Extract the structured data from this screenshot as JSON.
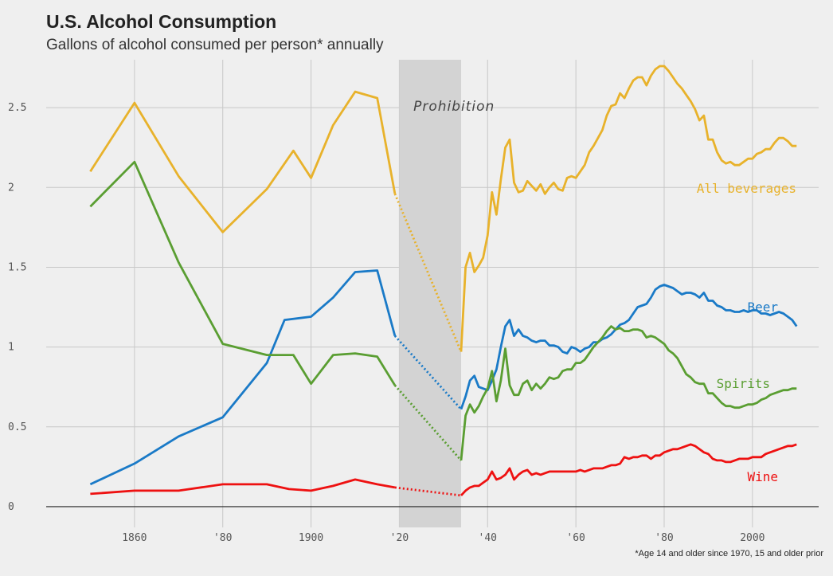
{
  "header": {
    "title": "U.S. Alcohol Consumption",
    "subtitle": "Gallons of alcohol consumed per person* annually",
    "footnote": "*Age 14 and older since 1970, 15 and older prior"
  },
  "chart_data": {
    "type": "line",
    "title": "U.S. Alcohol Consumption",
    "subtitle": "Gallons of alcohol consumed per person* annually",
    "xlim": [
      1840,
      2015
    ],
    "ylim": [
      -0.13,
      2.8
    ],
    "y_ticks": [
      0,
      0.5,
      1,
      1.5,
      2,
      2.5
    ],
    "y_tick_labels": [
      "0",
      "0.5",
      "1",
      "1.5",
      "2",
      "2.5"
    ],
    "x_ticks": [
      1860,
      1880,
      1900,
      1920,
      1940,
      1960,
      1980,
      2000
    ],
    "x_tick_labels": [
      "1860",
      "'80",
      "1900",
      "'20",
      "'40",
      "'60",
      "'80",
      "2000"
    ],
    "grid": true,
    "shaded_region": {
      "label": "Prohibition",
      "x": [
        1920,
        1934
      ],
      "color": "#d3d3d3"
    },
    "series": [
      {
        "name": "All beverages",
        "color": "#e8b22b",
        "x": [
          1850,
          1860,
          1870,
          1880,
          1890,
          1896,
          1900,
          1905,
          1910,
          1915,
          1919
        ],
        "y": [
          2.1,
          2.53,
          2.07,
          1.72,
          1.99,
          2.23,
          2.06,
          2.39,
          2.6,
          2.56,
          1.96
        ],
        "gap_x": [
          1919,
          1934
        ],
        "gap_y": [
          1.96,
          0.97
        ],
        "x2": [
          1934,
          1935,
          1936,
          1937,
          1938,
          1939,
          1940,
          1941,
          1942,
          1943,
          1944,
          1945,
          1946,
          1947,
          1948,
          1949,
          1950,
          1951,
          1952,
          1953,
          1954,
          1955,
          1956,
          1957,
          1958,
          1959,
          1960,
          1961,
          1962,
          1963,
          1964,
          1965,
          1966,
          1967,
          1968,
          1969,
          1970,
          1971,
          1972,
          1973,
          1974,
          1975,
          1976,
          1977,
          1978,
          1979,
          1980,
          1981,
          1982,
          1983,
          1984,
          1985,
          1986,
          1987,
          1988,
          1989,
          1990,
          1991,
          1992,
          1993,
          1994,
          1995,
          1996,
          1997,
          1998,
          1999,
          2000,
          2001,
          2002,
          2003,
          2004,
          2005,
          2006,
          2007,
          2008,
          2009,
          2010
        ],
        "y2": [
          0.97,
          1.5,
          1.59,
          1.47,
          1.51,
          1.56,
          1.7,
          1.97,
          1.83,
          2.05,
          2.25,
          2.3,
          2.03,
          1.97,
          1.98,
          2.04,
          2.01,
          1.98,
          2.02,
          1.96,
          2.0,
          2.03,
          1.99,
          1.98,
          2.06,
          2.07,
          2.06,
          2.1,
          2.14,
          2.22,
          2.26,
          2.31,
          2.36,
          2.45,
          2.51,
          2.52,
          2.59,
          2.56,
          2.62,
          2.67,
          2.69,
          2.69,
          2.64,
          2.7,
          2.74,
          2.76,
          2.76,
          2.73,
          2.69,
          2.65,
          2.62,
          2.58,
          2.54,
          2.49,
          2.42,
          2.45,
          2.3,
          2.3,
          2.22,
          2.17,
          2.15,
          2.16,
          2.14,
          2.14,
          2.16,
          2.18,
          2.18,
          2.21,
          2.22,
          2.24,
          2.24,
          2.28,
          2.31,
          2.31,
          2.29,
          2.26,
          2.26
        ]
      },
      {
        "name": "Beer",
        "color": "#1a7ac7",
        "x": [
          1850,
          1860,
          1870,
          1880,
          1890,
          1894,
          1900,
          1905,
          1910,
          1915,
          1919
        ],
        "y": [
          0.14,
          0.27,
          0.44,
          0.56,
          0.9,
          1.17,
          1.19,
          1.31,
          1.47,
          1.48,
          1.07
        ],
        "gap_x": [
          1919,
          1934
        ],
        "gap_y": [
          1.07,
          0.61
        ],
        "x2": [
          1934,
          1935,
          1936,
          1937,
          1938,
          1939,
          1940,
          1941,
          1942,
          1943,
          1944,
          1945,
          1946,
          1947,
          1948,
          1949,
          1950,
          1951,
          1952,
          1953,
          1954,
          1955,
          1956,
          1957,
          1958,
          1959,
          1960,
          1961,
          1962,
          1963,
          1964,
          1965,
          1966,
          1967,
          1968,
          1969,
          1970,
          1971,
          1972,
          1973,
          1974,
          1975,
          1976,
          1977,
          1978,
          1979,
          1980,
          1981,
          1982,
          1983,
          1984,
          1985,
          1986,
          1987,
          1988,
          1989,
          1990,
          1991,
          1992,
          1993,
          1994,
          1995,
          1996,
          1997,
          1998,
          1999,
          2000,
          2001,
          2002,
          2003,
          2004,
          2005,
          2006,
          2007,
          2008,
          2009,
          2010
        ],
        "y2": [
          0.61,
          0.69,
          0.79,
          0.82,
          0.75,
          0.74,
          0.73,
          0.79,
          0.86,
          1.0,
          1.13,
          1.17,
          1.07,
          1.11,
          1.07,
          1.06,
          1.04,
          1.03,
          1.04,
          1.04,
          1.01,
          1.01,
          1.0,
          0.97,
          0.96,
          1.0,
          0.99,
          0.97,
          0.99,
          1.0,
          1.03,
          1.03,
          1.05,
          1.06,
          1.08,
          1.11,
          1.14,
          1.15,
          1.17,
          1.21,
          1.25,
          1.26,
          1.27,
          1.31,
          1.36,
          1.38,
          1.39,
          1.38,
          1.37,
          1.35,
          1.33,
          1.34,
          1.34,
          1.33,
          1.31,
          1.34,
          1.29,
          1.29,
          1.26,
          1.25,
          1.23,
          1.23,
          1.22,
          1.22,
          1.23,
          1.22,
          1.23,
          1.23,
          1.21,
          1.21,
          1.2,
          1.21,
          1.22,
          1.21,
          1.19,
          1.17,
          1.13
        ]
      },
      {
        "name": "Spirits",
        "color": "#5a9e32",
        "x": [
          1850,
          1860,
          1870,
          1880,
          1890,
          1896,
          1900,
          1905,
          1910,
          1915,
          1919
        ],
        "y": [
          1.88,
          2.16,
          1.53,
          1.02,
          0.95,
          0.95,
          0.77,
          0.95,
          0.96,
          0.94,
          0.76
        ],
        "gap_x": [
          1919,
          1934
        ],
        "gap_y": [
          0.76,
          0.29
        ],
        "x2": [
          1934,
          1935,
          1936,
          1937,
          1938,
          1939,
          1940,
          1941,
          1942,
          1943,
          1944,
          1945,
          1946,
          1947,
          1948,
          1949,
          1950,
          1951,
          1952,
          1953,
          1954,
          1955,
          1956,
          1957,
          1958,
          1959,
          1960,
          1961,
          1962,
          1963,
          1964,
          1965,
          1966,
          1967,
          1968,
          1969,
          1970,
          1971,
          1972,
          1973,
          1974,
          1975,
          1976,
          1977,
          1978,
          1979,
          1980,
          1981,
          1982,
          1983,
          1984,
          1985,
          1986,
          1987,
          1988,
          1989,
          1990,
          1991,
          1992,
          1993,
          1994,
          1995,
          1996,
          1997,
          1998,
          1999,
          2000,
          2001,
          2002,
          2003,
          2004,
          2005,
          2006,
          2007,
          2008,
          2009,
          2010
        ],
        "y2": [
          0.29,
          0.57,
          0.64,
          0.59,
          0.63,
          0.69,
          0.74,
          0.85,
          0.66,
          0.79,
          0.99,
          0.76,
          0.7,
          0.7,
          0.77,
          0.79,
          0.73,
          0.77,
          0.74,
          0.77,
          0.81,
          0.8,
          0.81,
          0.85,
          0.86,
          0.86,
          0.9,
          0.9,
          0.92,
          0.96,
          1.0,
          1.03,
          1.06,
          1.1,
          1.13,
          1.11,
          1.12,
          1.1,
          1.1,
          1.11,
          1.11,
          1.1,
          1.06,
          1.07,
          1.06,
          1.04,
          1.02,
          0.98,
          0.96,
          0.93,
          0.88,
          0.83,
          0.81,
          0.78,
          0.77,
          0.77,
          0.71,
          0.71,
          0.68,
          0.65,
          0.63,
          0.63,
          0.62,
          0.62,
          0.63,
          0.64,
          0.64,
          0.65,
          0.67,
          0.68,
          0.7,
          0.71,
          0.72,
          0.73,
          0.73,
          0.74,
          0.74
        ]
      },
      {
        "name": "Wine",
        "color": "#ee1111",
        "x": [
          1850,
          1860,
          1870,
          1880,
          1890,
          1895,
          1900,
          1905,
          1910,
          1915,
          1919
        ],
        "y": [
          0.08,
          0.1,
          0.1,
          0.14,
          0.14,
          0.11,
          0.1,
          0.13,
          0.17,
          0.14,
          0.12
        ],
        "gap_x": [
          1919,
          1934
        ],
        "gap_y": [
          0.12,
          0.07
        ],
        "x2": [
          1934,
          1935,
          1936,
          1937,
          1938,
          1939,
          1940,
          1941,
          1942,
          1943,
          1944,
          1945,
          1946,
          1947,
          1948,
          1949,
          1950,
          1951,
          1952,
          1953,
          1954,
          1955,
          1956,
          1957,
          1958,
          1959,
          1960,
          1961,
          1962,
          1963,
          1964,
          1965,
          1966,
          1967,
          1968,
          1969,
          1970,
          1971,
          1972,
          1973,
          1974,
          1975,
          1976,
          1977,
          1978,
          1979,
          1980,
          1981,
          1982,
          1983,
          1984,
          1985,
          1986,
          1987,
          1988,
          1989,
          1990,
          1991,
          1992,
          1993,
          1994,
          1995,
          1996,
          1997,
          1998,
          1999,
          2000,
          2001,
          2002,
          2003,
          2004,
          2005,
          2006,
          2007,
          2008,
          2009,
          2010
        ],
        "y2": [
          0.07,
          0.1,
          0.12,
          0.13,
          0.13,
          0.15,
          0.17,
          0.22,
          0.17,
          0.18,
          0.2,
          0.24,
          0.17,
          0.2,
          0.22,
          0.23,
          0.2,
          0.21,
          0.2,
          0.21,
          0.22,
          0.22,
          0.22,
          0.22,
          0.22,
          0.22,
          0.22,
          0.23,
          0.22,
          0.23,
          0.24,
          0.24,
          0.24,
          0.25,
          0.26,
          0.26,
          0.27,
          0.31,
          0.3,
          0.31,
          0.31,
          0.32,
          0.32,
          0.3,
          0.32,
          0.32,
          0.34,
          0.35,
          0.36,
          0.36,
          0.37,
          0.38,
          0.39,
          0.38,
          0.36,
          0.34,
          0.33,
          0.3,
          0.29,
          0.29,
          0.28,
          0.28,
          0.29,
          0.3,
          0.3,
          0.3,
          0.31,
          0.31,
          0.31,
          0.33,
          0.34,
          0.35,
          0.36,
          0.37,
          0.38,
          0.38,
          0.39
        ]
      }
    ]
  }
}
